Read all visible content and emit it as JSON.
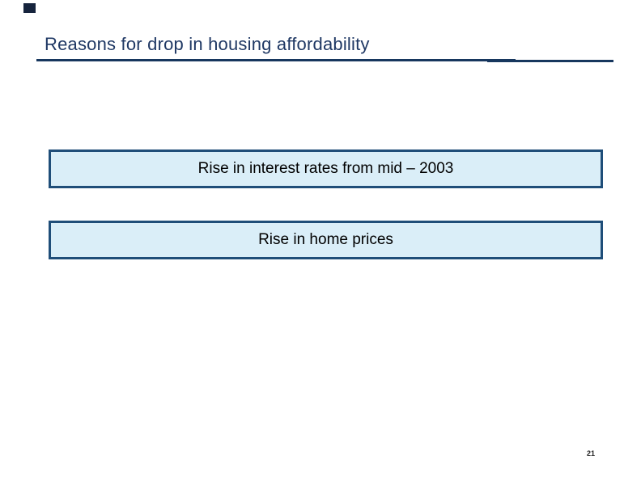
{
  "slide": {
    "title": "Reasons for drop in housing affordability",
    "boxes": [
      {
        "label": "Rise in interest rates from mid – 2003"
      },
      {
        "label": "Rise in home prices"
      }
    ],
    "page_number": "21",
    "colors": {
      "title_text": "#1f3864",
      "title_underline": "#17375e",
      "box_fill": "#daeef8",
      "box_border": "#1f4e79",
      "box_text": "#000000",
      "corner_marker": "#16243d",
      "background": "#ffffff"
    }
  }
}
